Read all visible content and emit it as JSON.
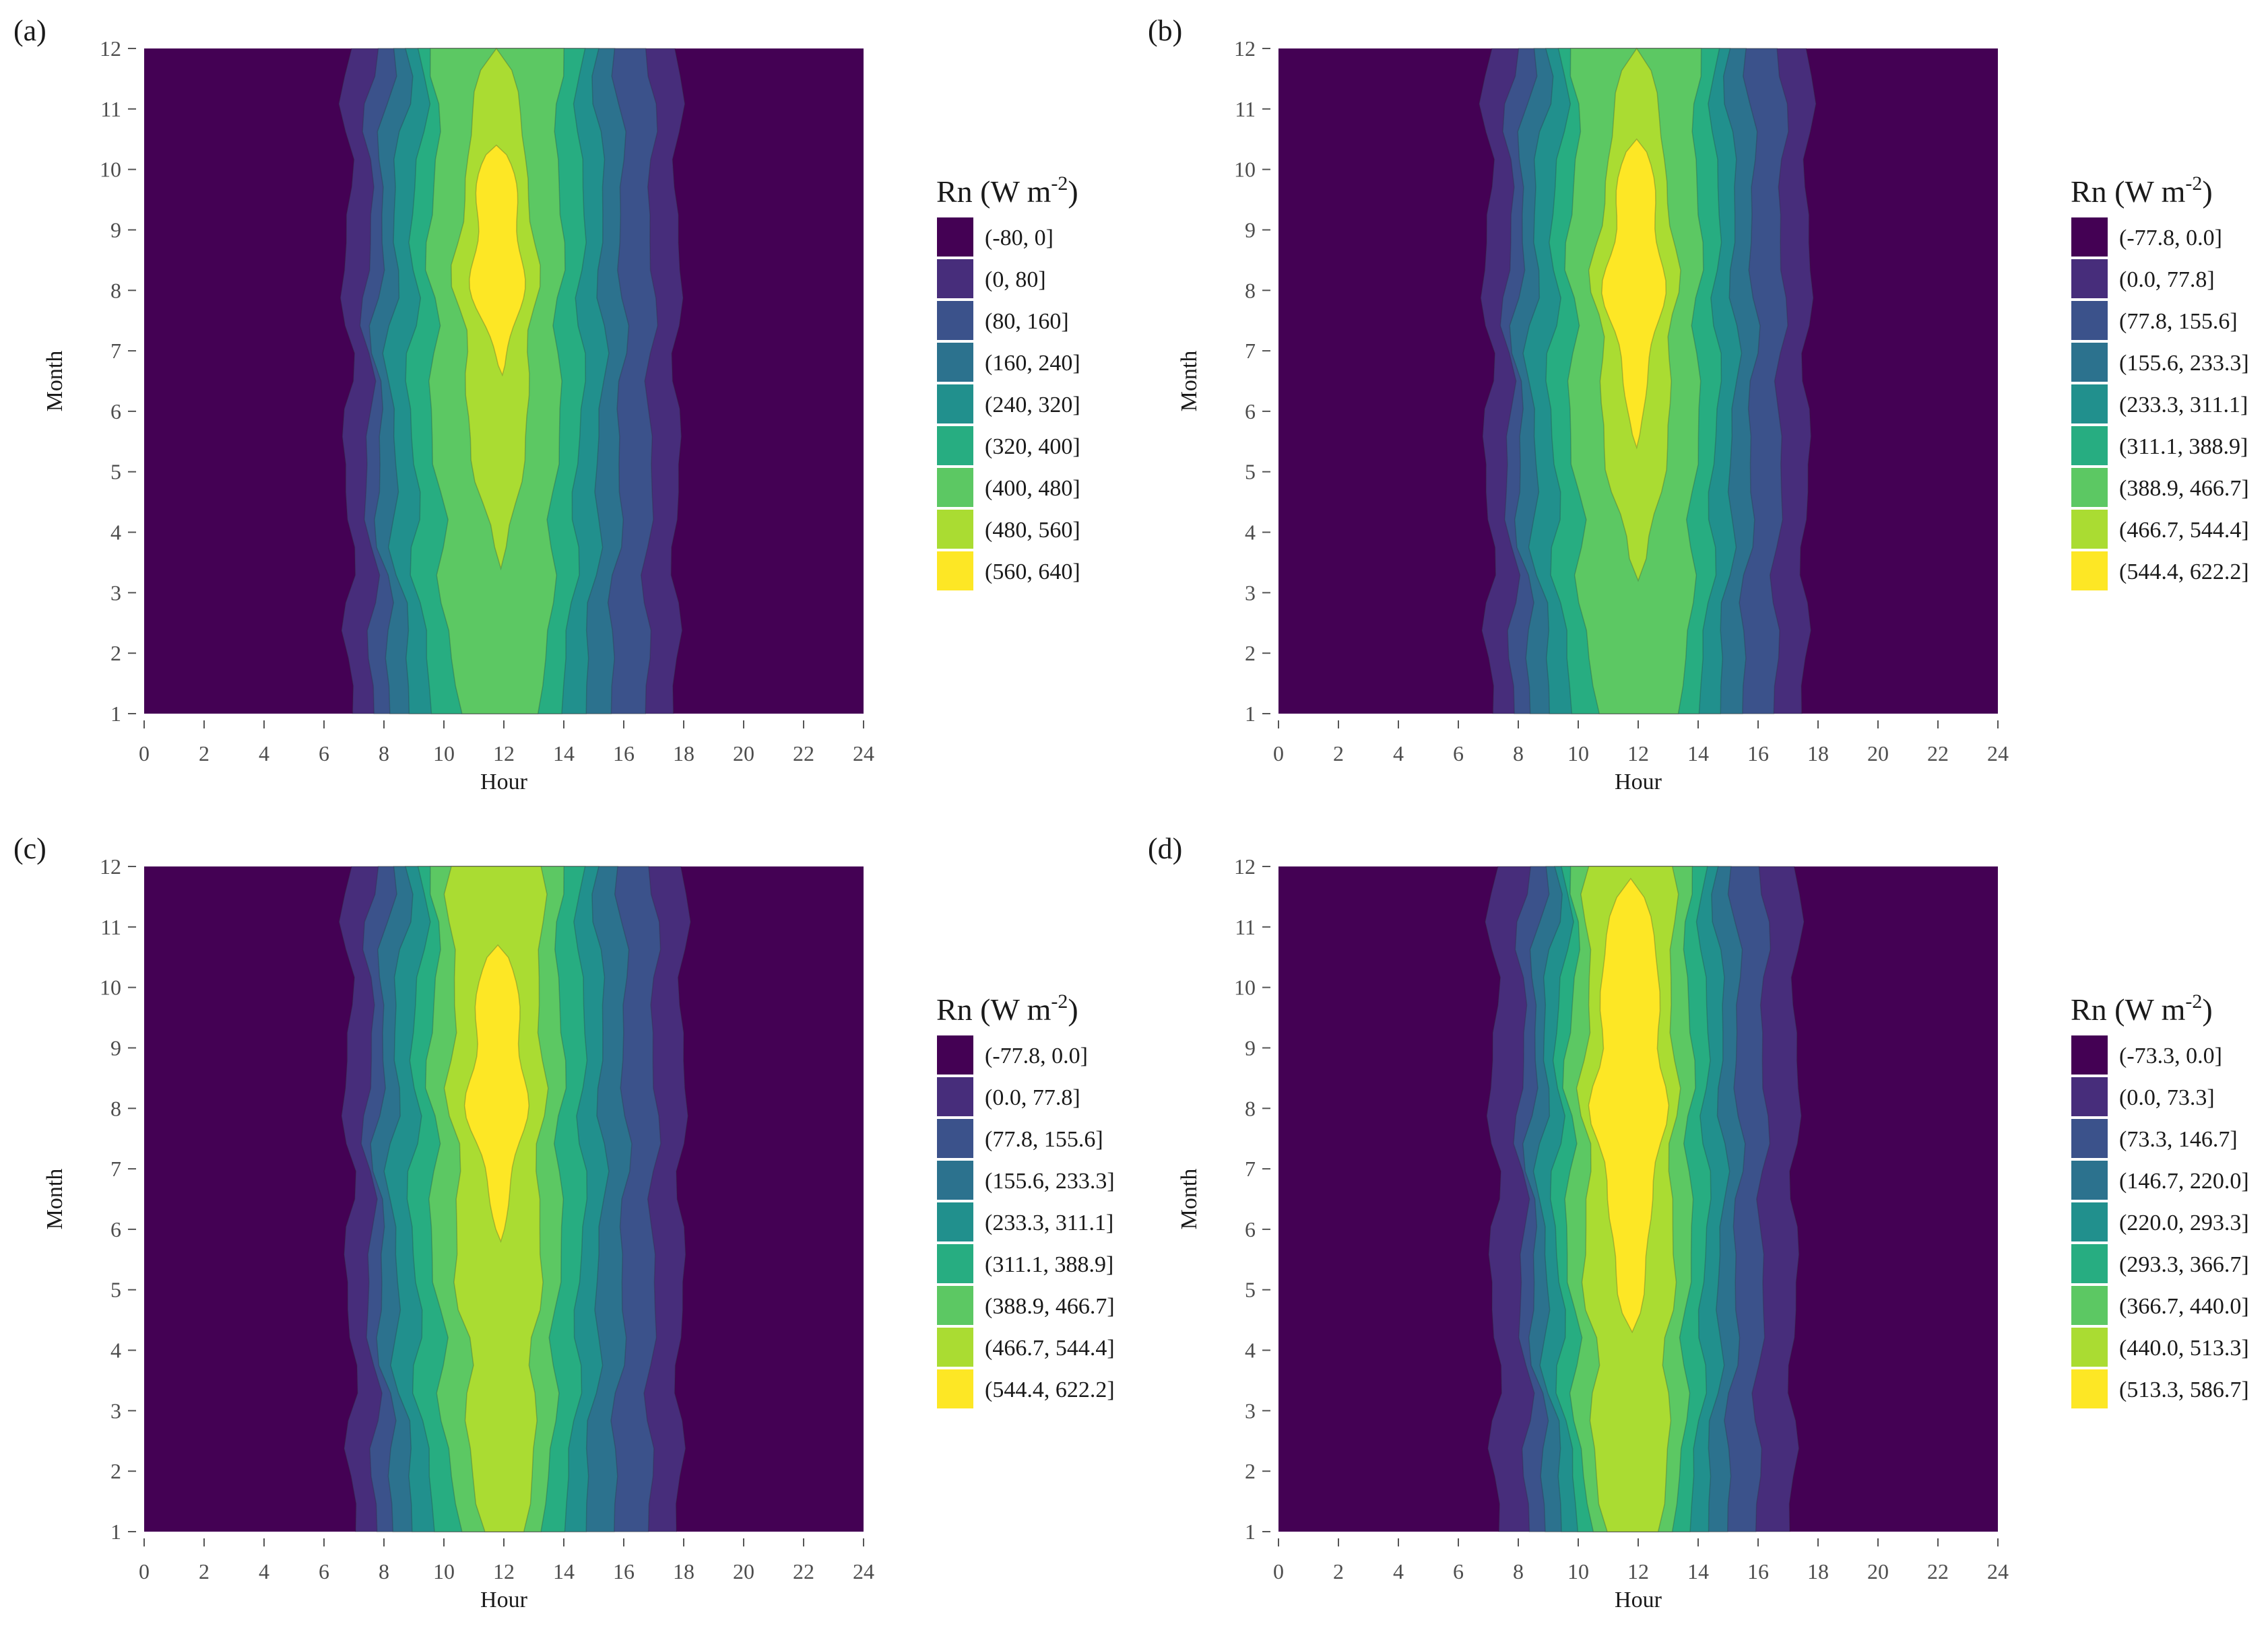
{
  "figure": {
    "colors": [
      "#440154",
      "#472d7b",
      "#3b528b",
      "#2c728e",
      "#21908d",
      "#27ad81",
      "#5cc863",
      "#aadc32",
      "#fde725"
    ],
    "x_axis_label": "Hour",
    "y_axis_label": "Month"
  },
  "chart_data": [
    {
      "panel_label": "(a)",
      "type": "heatmap",
      "xlabel": "Hour",
      "ylabel": "Month",
      "xlim": [
        0,
        24
      ],
      "ylim": [
        1,
        12
      ],
      "x_ticks": [
        "0",
        "2",
        "4",
        "6",
        "8",
        "10",
        "12",
        "14",
        "16",
        "18",
        "20",
        "22",
        "24"
      ],
      "y_ticks": [
        "1",
        "2",
        "3",
        "4",
        "5",
        "6",
        "7",
        "8",
        "9",
        "10",
        "11",
        "12"
      ],
      "legend_title": "Rn (W m",
      "legend_title_sup": "-2",
      "legend_title_end": ")",
      "legend_labels": [
        "(-80, 0]",
        "(0, 80]",
        "(80, 160]",
        "(160, 240]",
        "(240, 320]",
        "(320, 400]",
        "(400, 480]",
        "(480, 560]",
        "(560, 640]"
      ],
      "bands": {
        "left": [
          [
            6.9,
            6.8
          ],
          [
            7.7,
            7.6
          ],
          [
            8.3,
            8.2
          ],
          [
            8.9,
            8.8
          ],
          [
            9.5,
            9.4
          ],
          [
            10.4,
            9.8
          ],
          [
            11.3,
            10.4
          ],
          [
            11.8,
            10.8
          ]
        ],
        "right": [
          [
            17.7,
            17.8
          ],
          [
            16.7,
            16.9
          ],
          [
            15.5,
            15.8
          ],
          [
            14.7,
            15.1
          ],
          [
            14.0,
            14.5
          ],
          [
            13.3,
            13.8
          ],
          [
            12.5,
            13.1
          ],
          [
            12.1,
            12.7
          ]
        ],
        "amp": [
          0.25,
          0.55,
          1.35,
          1.75,
          1.55,
          1.35,
          1.0,
          1.0
        ],
        "start": [
          1,
          1,
          1,
          1,
          1,
          1,
          3.4,
          6.6
        ],
        "end": [
          12,
          12,
          12,
          12,
          12,
          12,
          12,
          10.4
        ]
      }
    },
    {
      "panel_label": "(b)",
      "type": "heatmap",
      "xlabel": "Hour",
      "ylabel": "Month",
      "xlim": [
        0,
        24
      ],
      "ylim": [
        1,
        12
      ],
      "x_ticks": [
        "0",
        "2",
        "4",
        "6",
        "8",
        "10",
        "12",
        "14",
        "16",
        "18",
        "20",
        "22",
        "24"
      ],
      "y_ticks": [
        "1",
        "2",
        "3",
        "4",
        "5",
        "6",
        "7",
        "8",
        "9",
        "10",
        "11",
        "12"
      ],
      "legend_title": "Rn (W m",
      "legend_title_sup": "-2",
      "legend_title_end": ")",
      "legend_labels": [
        "(-77.8, 0.0]",
        "(0.0, 77.8]",
        "(77.8, 155.6]",
        "(155.6, 233.3]",
        "(233.3, 311.1]",
        "(311.1, 388.9]",
        "(388.9, 466.7]",
        "(466.7, 544.4]",
        "(544.4, 622.2]"
      ],
      "bands": {
        "left": [
          [
            7.1,
            7.0
          ],
          [
            7.9,
            7.8
          ],
          [
            8.5,
            8.4
          ],
          [
            9.1,
            9.0
          ],
          [
            9.7,
            9.6
          ],
          [
            10.5,
            10.0
          ],
          [
            11.2,
            10.7
          ],
          [
            11.8,
            11.0
          ]
        ],
        "right": [
          [
            17.5,
            17.7
          ],
          [
            16.5,
            16.8
          ],
          [
            15.4,
            15.7
          ],
          [
            14.7,
            15.0
          ],
          [
            14.1,
            14.5
          ],
          [
            13.5,
            13.9
          ],
          [
            12.8,
            13.2
          ],
          [
            12.1,
            12.9
          ]
        ],
        "amp": [
          0.25,
          0.55,
          1.35,
          1.75,
          1.55,
          1.35,
          1.0,
          1.0
        ],
        "start": [
          1,
          1,
          1,
          1,
          1,
          1,
          3.2,
          5.4
        ],
        "end": [
          12,
          12,
          12,
          12,
          12,
          12,
          12,
          10.5
        ]
      }
    },
    {
      "panel_label": "(c)",
      "type": "heatmap",
      "xlabel": "Hour",
      "ylabel": "Month",
      "xlim": [
        0,
        24
      ],
      "ylim": [
        1,
        12
      ],
      "x_ticks": [
        "0",
        "2",
        "4",
        "6",
        "8",
        "10",
        "12",
        "14",
        "16",
        "18",
        "20",
        "22",
        "24"
      ],
      "y_ticks": [
        "1",
        "2",
        "3",
        "4",
        "5",
        "6",
        "7",
        "8",
        "9",
        "10",
        "11",
        "12"
      ],
      "legend_title": "Rn (W m",
      "legend_title_sup": "-2",
      "legend_title_end": ")",
      "legend_labels": [
        "(-77.8, 0.0]",
        "(0.0, 77.8]",
        "(77.8, 155.6]",
        "(155.6, 233.3]",
        "(233.3, 311.1]",
        "(311.1, 388.9]",
        "(388.9, 466.7]",
        "(466.7, 544.4]",
        "(544.4, 622.2]"
      ],
      "bands": {
        "left": [
          [
            7.0,
            6.8
          ],
          [
            7.8,
            7.6
          ],
          [
            8.4,
            8.2
          ],
          [
            9.0,
            8.8
          ],
          [
            9.6,
            9.4
          ],
          [
            10.4,
            9.8
          ],
          [
            11.2,
            10.3
          ],
          [
            11.7,
            10.8
          ]
        ],
        "right": [
          [
            17.8,
            18.0
          ],
          [
            16.8,
            17.0
          ],
          [
            15.6,
            15.9
          ],
          [
            14.7,
            15.1
          ],
          [
            14.1,
            14.5
          ],
          [
            13.4,
            13.8
          ],
          [
            12.8,
            13.2
          ],
          [
            12.1,
            12.8
          ]
        ],
        "amp": [
          0.25,
          0.55,
          1.35,
          1.75,
          1.55,
          1.35,
          1.0,
          1.0
        ],
        "start": [
          1,
          1,
          1,
          1,
          1,
          1,
          1,
          5.8
        ],
        "end": [
          12,
          12,
          12,
          12,
          12,
          12,
          12,
          10.7
        ]
      }
    },
    {
      "panel_label": "(d)",
      "type": "heatmap",
      "xlabel": "Hour",
      "ylabel": "Month",
      "xlim": [
        0,
        24
      ],
      "ylim": [
        1,
        12
      ],
      "x_ticks": [
        "0",
        "2",
        "4",
        "6",
        "8",
        "10",
        "12",
        "14",
        "16",
        "18",
        "20",
        "22",
        "24"
      ],
      "y_ticks": [
        "1",
        "2",
        "3",
        "4",
        "5",
        "6",
        "7",
        "8",
        "9",
        "10",
        "11",
        "12"
      ],
      "legend_title": "Rn (W m",
      "legend_title_sup": "-2",
      "legend_title_end": ")",
      "legend_labels": [
        "(-73.3, 0.0]",
        "(0.0, 73.3]",
        "(73.3, 146.7]",
        "(146.7, 220.0]",
        "(220.0, 293.3]",
        "(293.3, 366.7]",
        "(366.7, 440.0]",
        "(440.0, 513.3]",
        "(513.3, 586.7]"
      ],
      "bands": {
        "left": [
          [
            7.3,
            7.2
          ],
          [
            8.4,
            8.2
          ],
          [
            9.0,
            8.8
          ],
          [
            9.5,
            9.3
          ],
          [
            9.9,
            9.7
          ],
          [
            10.3,
            10.0
          ],
          [
            10.8,
            10.4
          ],
          [
            11.4,
            10.5
          ]
        ],
        "right": [
          [
            17.1,
            17.3
          ],
          [
            15.9,
            16.2
          ],
          [
            14.9,
            15.2
          ],
          [
            14.3,
            14.6
          ],
          [
            13.8,
            14.1
          ],
          [
            13.3,
            13.6
          ],
          [
            12.8,
            13.1
          ],
          [
            12.2,
            13.0
          ]
        ],
        "amp": [
          0.25,
          0.55,
          1.35,
          1.75,
          1.55,
          1.35,
          1.0,
          1.0
        ],
        "start": [
          1,
          1,
          1,
          1,
          1,
          1,
          1,
          4.3
        ],
        "end": [
          12,
          12,
          12,
          12,
          12,
          12,
          12,
          11.8
        ]
      }
    }
  ]
}
